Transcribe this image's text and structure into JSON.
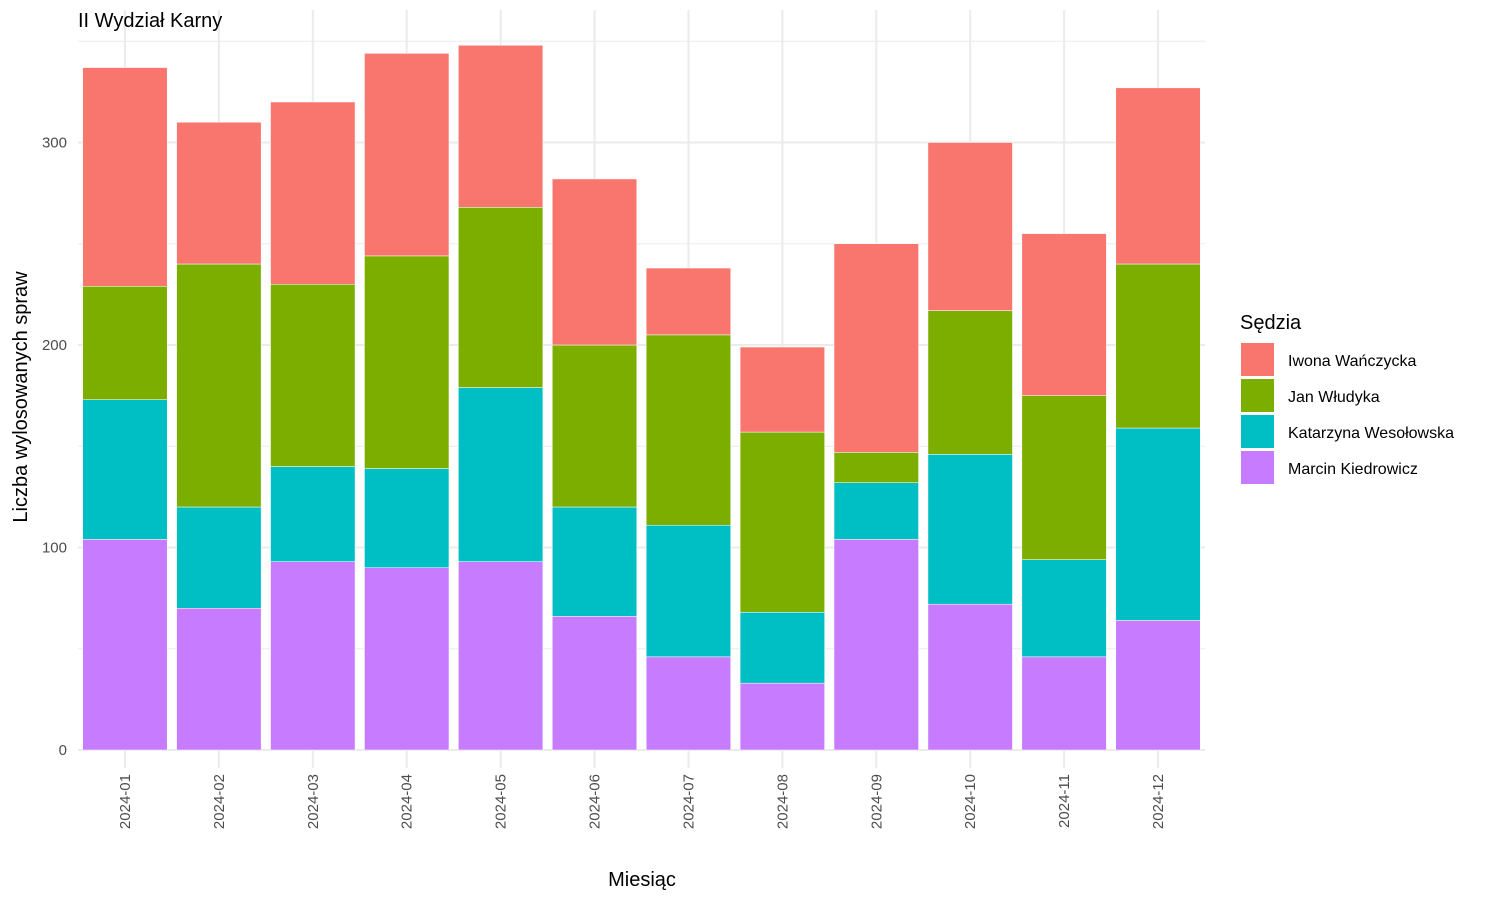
{
  "chart_data": {
    "type": "bar",
    "stacked": true,
    "title": "II Wydział Karny",
    "xlabel": "Miesiąc",
    "ylabel": "Liczba wylosowanych spraw",
    "ylim": [
      0,
      350
    ],
    "yticks": [
      0,
      100,
      200,
      300
    ],
    "grid": true,
    "legend": {
      "title": "Sędzia",
      "position": "right"
    },
    "categories": [
      "2024-01",
      "2024-02",
      "2024-03",
      "2024-04",
      "2024-05",
      "2024-06",
      "2024-07",
      "2024-08",
      "2024-09",
      "2024-10",
      "2024-11",
      "2024-12"
    ],
    "series": [
      {
        "name": "Marcin Kiedrowicz",
        "color": "#C77CFF",
        "values": [
          104,
          70,
          93,
          90,
          93,
          66,
          46,
          33,
          104,
          72,
          46,
          64
        ]
      },
      {
        "name": "Katarzyna Wesołowska",
        "color": "#00BFC4",
        "values": [
          69,
          50,
          47,
          49,
          86,
          54,
          65,
          35,
          28,
          74,
          48,
          95
        ]
      },
      {
        "name": "Jan Włudyka",
        "color": "#7CAE00",
        "values": [
          56,
          120,
          90,
          105,
          89,
          80,
          94,
          89,
          15,
          71,
          81,
          81
        ]
      },
      {
        "name": "Iwona Wańczycka",
        "color": "#F8766D",
        "values": [
          108,
          70,
          90,
          100,
          80,
          82,
          33,
          42,
          103,
          83,
          80,
          87
        ]
      }
    ],
    "legend_order": [
      "Iwona Wańczycka",
      "Jan Włudyka",
      "Katarzyna Wesołowska",
      "Marcin Kiedrowicz"
    ]
  }
}
